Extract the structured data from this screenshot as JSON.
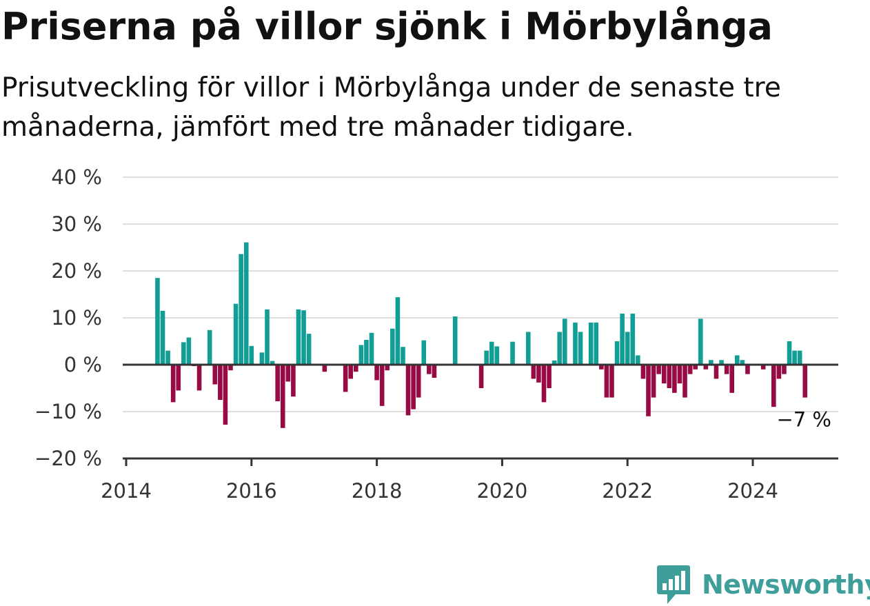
{
  "title": "Priserna på villor sjönk i Mörbylånga",
  "subtitle": "Prisutveckling för villor i Mörbylånga under de senaste tre månaderna, jämfört med tre månader tidigare.",
  "brand": {
    "name": "Newsworthy",
    "icon": "newsworthy-logo-icon",
    "color": "#3d9e9a"
  },
  "colors": {
    "positive": "#139e95",
    "negative": "#980a44",
    "grid": "#dddddd",
    "axis": "#333333"
  },
  "chart_data": {
    "type": "bar",
    "title": "Priserna på villor sjönk i Mörbylånga",
    "subtitle": "Prisutveckling för villor i Mörbylånga under de senaste tre månaderna, jämfört med tre månader tidigare.",
    "xlabel": "",
    "ylabel": "",
    "xlim": [
      "2014-01",
      "2025-06"
    ],
    "ylim": [
      -20,
      40
    ],
    "yticks": [
      40,
      30,
      20,
      10,
      0,
      -10,
      -20
    ],
    "ytick_labels": [
      "40 %",
      "30 %",
      "20 %",
      "10 %",
      "0 %",
      "−10 %",
      "−20 %"
    ],
    "xticks": [
      "2014",
      "2016",
      "2018",
      "2020",
      "2022",
      "2024"
    ],
    "grid": true,
    "last_value_label": "−7 %",
    "series": [
      {
        "values": [
          {
            "x": "2014-07",
            "y": 18.5
          },
          {
            "x": "2014-08",
            "y": 11.5
          },
          {
            "x": "2014-09",
            "y": 3
          },
          {
            "x": "2014-10",
            "y": -8
          },
          {
            "x": "2014-11",
            "y": -5.5
          },
          {
            "x": "2014-12",
            "y": 4.8
          },
          {
            "x": "2015-01",
            "y": 5.8
          },
          {
            "x": "2015-02",
            "y": -0.3
          },
          {
            "x": "2015-03",
            "y": -5.5
          },
          {
            "x": "2015-05",
            "y": 7.4
          },
          {
            "x": "2015-06",
            "y": -4.2
          },
          {
            "x": "2015-07",
            "y": -7.5
          },
          {
            "x": "2015-08",
            "y": -12.8
          },
          {
            "x": "2015-09",
            "y": -1.2
          },
          {
            "x": "2015-10",
            "y": 13
          },
          {
            "x": "2015-11",
            "y": 23.6
          },
          {
            "x": "2015-12",
            "y": 26.1
          },
          {
            "x": "2016-01",
            "y": 4
          },
          {
            "x": "2016-03",
            "y": 2.6
          },
          {
            "x": "2016-04",
            "y": 11.8
          },
          {
            "x": "2016-05",
            "y": 0.8
          },
          {
            "x": "2016-06",
            "y": -7.8
          },
          {
            "x": "2016-07",
            "y": -13.5
          },
          {
            "x": "2016-08",
            "y": -3.6
          },
          {
            "x": "2016-09",
            "y": -6.8
          },
          {
            "x": "2016-10",
            "y": 11.8
          },
          {
            "x": "2016-11",
            "y": 11.6
          },
          {
            "x": "2016-12",
            "y": 6.6
          },
          {
            "x": "2017-03",
            "y": -1.5
          },
          {
            "x": "2017-07",
            "y": -5.8
          },
          {
            "x": "2017-08",
            "y": -3
          },
          {
            "x": "2017-09",
            "y": -1.5
          },
          {
            "x": "2017-10",
            "y": 4.2
          },
          {
            "x": "2017-11",
            "y": 5.3
          },
          {
            "x": "2017-12",
            "y": 6.8
          },
          {
            "x": "2018-01",
            "y": -3.3
          },
          {
            "x": "2018-02",
            "y": -8.8
          },
          {
            "x": "2018-03",
            "y": -1.2
          },
          {
            "x": "2018-04",
            "y": 7.7
          },
          {
            "x": "2018-05",
            "y": 14.4
          },
          {
            "x": "2018-06",
            "y": 3.8
          },
          {
            "x": "2018-07",
            "y": -10.8
          },
          {
            "x": "2018-08",
            "y": -9.5
          },
          {
            "x": "2018-09",
            "y": -7
          },
          {
            "x": "2018-10",
            "y": 5.2
          },
          {
            "x": "2018-11",
            "y": -2
          },
          {
            "x": "2018-12",
            "y": -2.8
          },
          {
            "x": "2019-04",
            "y": 10.3
          },
          {
            "x": "2019-09",
            "y": -5
          },
          {
            "x": "2019-10",
            "y": 3
          },
          {
            "x": "2019-11",
            "y": 4.9
          },
          {
            "x": "2019-12",
            "y": 3.9
          },
          {
            "x": "2020-03",
            "y": 4.9
          },
          {
            "x": "2020-06",
            "y": 7
          },
          {
            "x": "2020-07",
            "y": -3
          },
          {
            "x": "2020-08",
            "y": -3.8
          },
          {
            "x": "2020-09",
            "y": -8
          },
          {
            "x": "2020-10",
            "y": -5
          },
          {
            "x": "2020-11",
            "y": 0.9
          },
          {
            "x": "2020-12",
            "y": 7
          },
          {
            "x": "2021-01",
            "y": 9.8
          },
          {
            "x": "2021-03",
            "y": 9
          },
          {
            "x": "2021-04",
            "y": 7
          },
          {
            "x": "2021-06",
            "y": 9
          },
          {
            "x": "2021-07",
            "y": 9
          },
          {
            "x": "2021-08",
            "y": -1
          },
          {
            "x": "2021-09",
            "y": -7
          },
          {
            "x": "2021-10",
            "y": -7
          },
          {
            "x": "2021-11",
            "y": 5
          },
          {
            "x": "2021-12",
            "y": 10.9
          },
          {
            "x": "2022-01",
            "y": 7
          },
          {
            "x": "2022-02",
            "y": 10.9
          },
          {
            "x": "2022-03",
            "y": 2
          },
          {
            "x": "2022-04",
            "y": -3
          },
          {
            "x": "2022-05",
            "y": -11
          },
          {
            "x": "2022-06",
            "y": -7
          },
          {
            "x": "2022-07",
            "y": -2
          },
          {
            "x": "2022-08",
            "y": -4
          },
          {
            "x": "2022-09",
            "y": -5
          },
          {
            "x": "2022-10",
            "y": -6
          },
          {
            "x": "2022-11",
            "y": -4
          },
          {
            "x": "2022-12",
            "y": -7
          },
          {
            "x": "2023-01",
            "y": -2
          },
          {
            "x": "2023-02",
            "y": -1
          },
          {
            "x": "2023-03",
            "y": 9.8
          },
          {
            "x": "2023-04",
            "y": -1
          },
          {
            "x": "2023-05",
            "y": 1
          },
          {
            "x": "2023-06",
            "y": -3
          },
          {
            "x": "2023-07",
            "y": 1
          },
          {
            "x": "2023-08",
            "y": -2
          },
          {
            "x": "2023-09",
            "y": -6
          },
          {
            "x": "2023-10",
            "y": 2
          },
          {
            "x": "2023-11",
            "y": 1
          },
          {
            "x": "2023-12",
            "y": -2
          },
          {
            "x": "2024-03",
            "y": -1
          },
          {
            "x": "2024-05",
            "y": -9
          },
          {
            "x": "2024-06",
            "y": -3
          },
          {
            "x": "2024-07",
            "y": -2
          },
          {
            "x": "2024-08",
            "y": 5
          },
          {
            "x": "2024-09",
            "y": 3
          },
          {
            "x": "2024-10",
            "y": 3
          },
          {
            "x": "2024-11",
            "y": -7
          }
        ]
      }
    ]
  }
}
